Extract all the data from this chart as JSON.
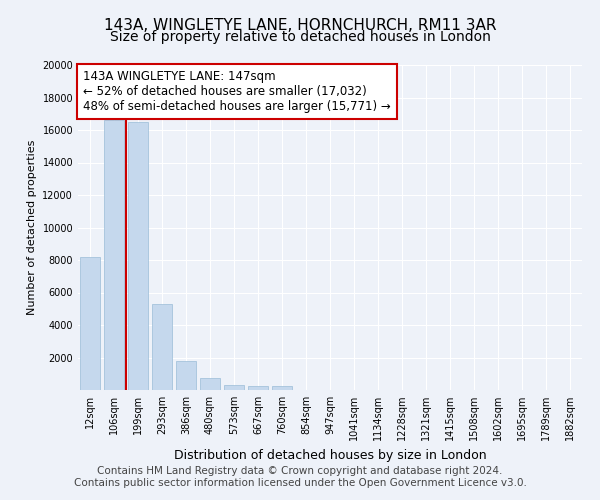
{
  "title": "143A, WINGLETYE LANE, HORNCHURCH, RM11 3AR",
  "subtitle": "Size of property relative to detached houses in London",
  "xlabel": "Distribution of detached houses by size in London",
  "ylabel": "Number of detached properties",
  "categories": [
    "12sqm",
    "106sqm",
    "199sqm",
    "293sqm",
    "386sqm",
    "480sqm",
    "573sqm",
    "667sqm",
    "760sqm",
    "854sqm",
    "947sqm",
    "1041sqm",
    "1134sqm",
    "1228sqm",
    "1321sqm",
    "1415sqm",
    "1508sqm",
    "1602sqm",
    "1695sqm",
    "1789sqm",
    "1882sqm"
  ],
  "values": [
    8200,
    16600,
    16500,
    5300,
    1800,
    750,
    300,
    250,
    250,
    0,
    0,
    0,
    0,
    0,
    0,
    0,
    0,
    0,
    0,
    0,
    0
  ],
  "bar_color": "#c5d8ed",
  "bar_edge_color": "#9bbcd8",
  "vline_x": 1.5,
  "vline_color": "#cc0000",
  "annotation_text": "143A WINGLETYE LANE: 147sqm\n← 52% of detached houses are smaller (17,032)\n48% of semi-detached houses are larger (15,771) →",
  "annotation_box_color": "#ffffff",
  "annotation_box_edge_color": "#cc0000",
  "ylim": [
    0,
    20000
  ],
  "yticks": [
    0,
    2000,
    4000,
    6000,
    8000,
    10000,
    12000,
    14000,
    16000,
    18000,
    20000
  ],
  "footer_text": "Contains HM Land Registry data © Crown copyright and database right 2024.\nContains public sector information licensed under the Open Government Licence v3.0.",
  "bg_color": "#eef2f9",
  "plot_bg_color": "#eef2f9",
  "grid_color": "#ffffff",
  "title_fontsize": 11,
  "subtitle_fontsize": 10,
  "ylabel_fontsize": 8,
  "xlabel_fontsize": 9,
  "tick_fontsize": 7,
  "footer_fontsize": 7.5,
  "ann_fontsize": 8.5
}
